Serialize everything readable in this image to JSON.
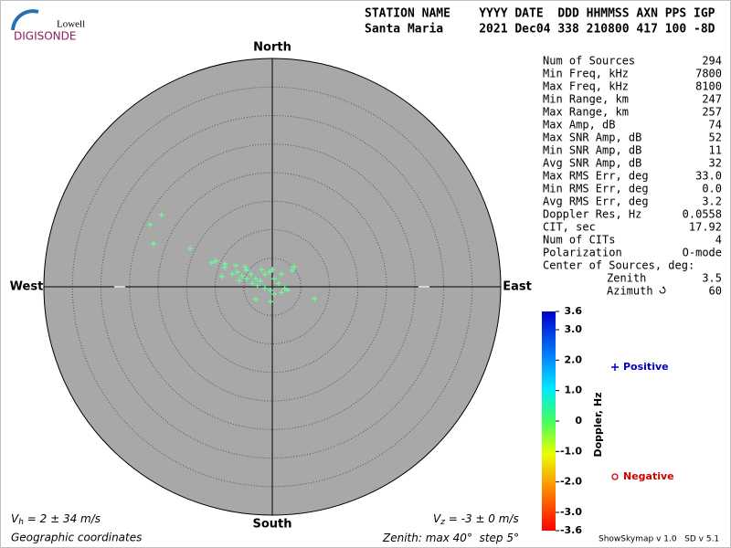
{
  "header": {
    "logo_top": "Lowell",
    "logo_bottom": "DIGISONDE",
    "columns": "STATION NAME    YYYY DATE  DDD HHMMSS AXN PPS IGP",
    "values": "Santa Maria     2021 Dec04 338 210800 417 100 -8D"
  },
  "chart_data": {
    "type": "scatter",
    "north": "North",
    "south": "South",
    "east": "East",
    "west": "West",
    "zenith_max": 40,
    "ring_step": 5,
    "color": "#66ff99",
    "x": [
      -19.4,
      -21.4,
      -20.8,
      -14.4,
      -10.6,
      -9.9,
      -8.3,
      -8.3,
      -8.8,
      -6.4,
      -6.1,
      -5.3,
      -4.5,
      -3.7,
      -2.9,
      -2.1,
      -1.3,
      -0.5,
      0,
      0.3,
      1.1,
      1.6,
      2.2,
      2.7,
      3.5,
      3.8,
      -2.6,
      -1.3,
      -0.3,
      0.3,
      1.6,
      -2.9,
      -0.3,
      7.4,
      -4.5,
      -3.5,
      -1.9,
      -5.8,
      -4.8,
      -7.0
    ],
    "values": [
      12.6,
      10.9,
      7.5,
      6.7,
      4.2,
      4.5,
      4.0,
      3.4,
      1.8,
      3.7,
      2.6,
      1.9,
      2.9,
      2.2,
      1.4,
      1.0,
      2.2,
      2.6,
      3.0,
      1.4,
      0.6,
      2.2,
      -0.3,
      -0.6,
      2.9,
      3.5,
      0.2,
      -0.2,
      -0.6,
      -1.3,
      -1.0,
      -2.2,
      -2.6,
      -2.1,
      1.4,
      0.6,
      3.0,
      1.1,
      3.5,
      2.2
    ]
  },
  "stats": [
    {
      "label": "Num of Sources",
      "value": "294"
    },
    {
      "label": "Min Freq, kHz",
      "value": "7800"
    },
    {
      "label": "Max Freq, kHz",
      "value": "8100"
    },
    {
      "label": "Min Range, km",
      "value": "247"
    },
    {
      "label": "Max Range, km",
      "value": "257"
    },
    {
      "label": "Max Amp, dB",
      "value": "74"
    },
    {
      "label": "Max SNR Amp, dB",
      "value": "52"
    },
    {
      "label": "Min SNR Amp, dB",
      "value": "11"
    },
    {
      "label": "Avg SNR Amp, dB",
      "value": "32"
    },
    {
      "label": "Max RMS Err, deg",
      "value": "33.0"
    },
    {
      "label": "Min RMS Err, deg",
      "value": "0.0"
    },
    {
      "label": "Avg RMS Err, deg",
      "value": "3.2"
    },
    {
      "label": "Doppler Res, Hz",
      "value": "0.0558"
    },
    {
      "label": "CIT, sec",
      "value": "17.92"
    },
    {
      "label": "Num of CITs",
      "value": "4"
    },
    {
      "label": "Polarization",
      "value": "O-mode"
    }
  ],
  "center": {
    "label": "Center of Sources, deg:",
    "zenith_label": "Zenith",
    "zenith_value": "3.5",
    "azimuth_label": "Azimuth",
    "azimuth_value": "60"
  },
  "colorbar": {
    "label": "Doppler, Hz",
    "positive": "Positive",
    "negative": "Negative",
    "lim": [
      -3.6,
      3.6
    ],
    "ticks": [
      3.6,
      {
        "value": 3,
        "label": "3.0"
      },
      {
        "value": 2,
        "label": "2.0"
      },
      {
        "value": 1,
        "label": "1.0"
      },
      0,
      {
        "value": -1,
        "label": "-1.0"
      },
      {
        "value": -2,
        "label": "-2.0"
      },
      {
        "value": -3,
        "label": "-3.0"
      },
      -3.6
    ]
  },
  "footer": {
    "vh_symbol": "V",
    "vh_sub": "h",
    "vh_value": " = 2 ± 34 m/s",
    "vz_symbol": "V",
    "vz_sub": "z",
    "vz_value": " = -3 ± 0 m/s",
    "coordinates": "Geographic coordinates",
    "zenith_prefix": "Zenith: max ",
    "step_prefix": "°  step ",
    "degree": "°",
    "version": "ShowSkymap v 1.0   SD v 5.1"
  }
}
